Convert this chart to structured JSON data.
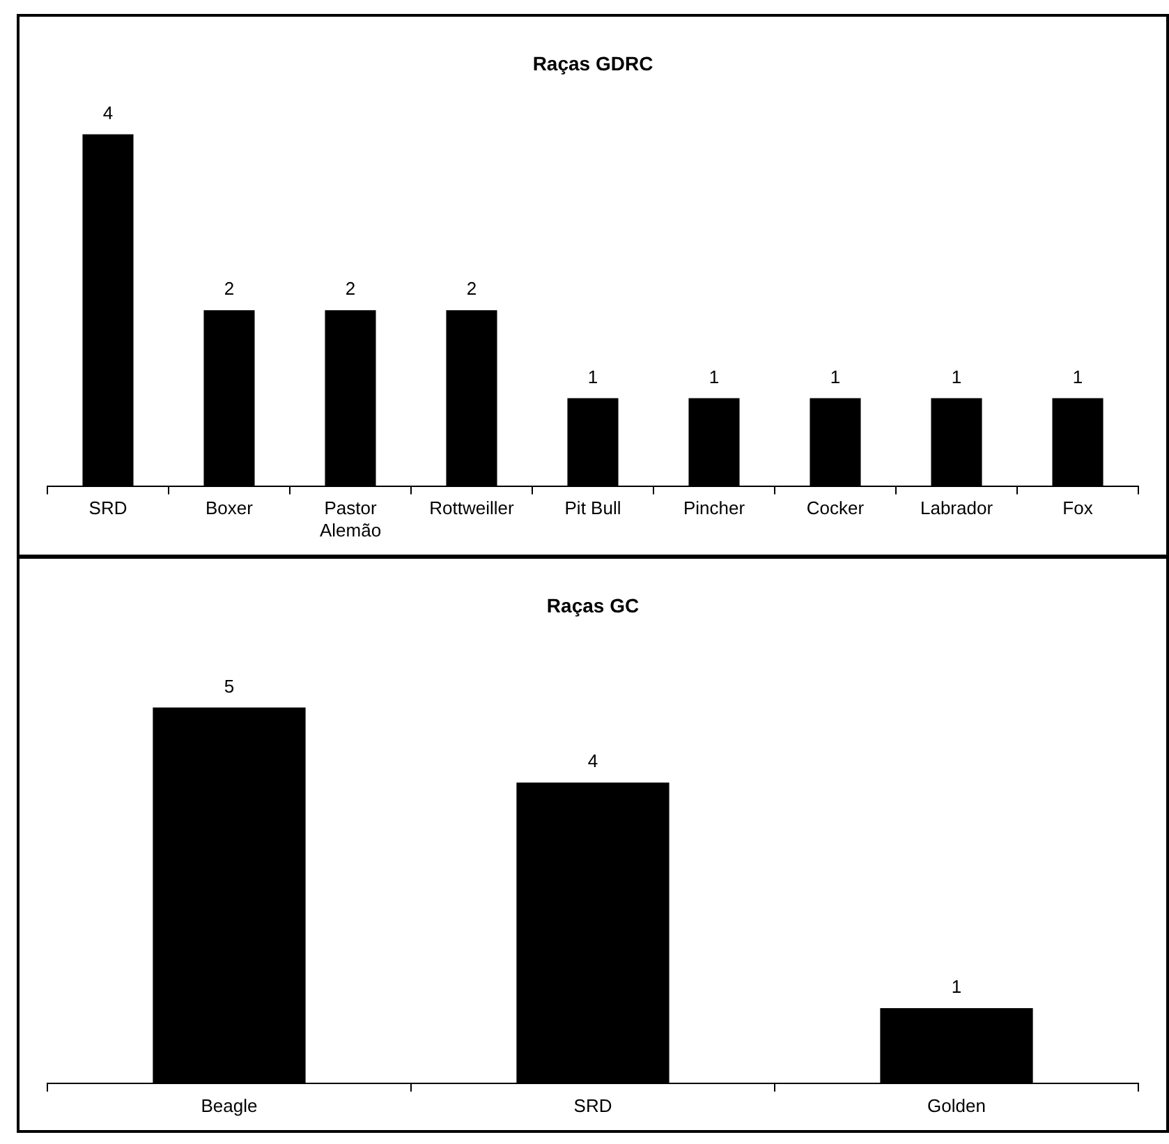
{
  "chart_data": [
    {
      "type": "bar",
      "title": "Raças GDRC",
      "categories": [
        "SRD",
        "Boxer",
        "Pastor Alemão",
        "Rottweiller",
        "Pit Bull",
        "Pincher",
        "Cocker",
        "Labrador",
        "Fox"
      ],
      "values": [
        4,
        2,
        2,
        2,
        1,
        1,
        1,
        1,
        1
      ],
      "color": "#000000",
      "data_labels": true,
      "tick_labels": "x",
      "grid": false,
      "legend": false
    },
    {
      "type": "bar",
      "title": "Raças GC",
      "categories": [
        "Beagle",
        "SRD",
        "Golden"
      ],
      "values": [
        5,
        4,
        1
      ],
      "color": "#000000",
      "data_labels": true,
      "tick_labels": "x",
      "grid": false,
      "legend": false
    }
  ]
}
